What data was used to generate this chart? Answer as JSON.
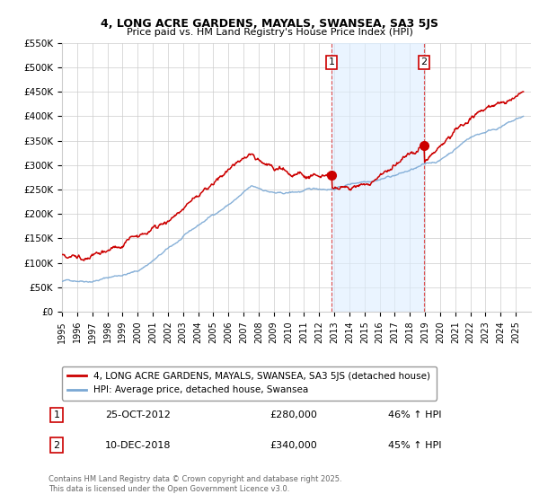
{
  "title": "4, LONG ACRE GARDENS, MAYALS, SWANSEA, SA3 5JS",
  "subtitle": "Price paid vs. HM Land Registry's House Price Index (HPI)",
  "ylabel_ticks": [
    "£0",
    "£50K",
    "£100K",
    "£150K",
    "£200K",
    "£250K",
    "£300K",
    "£350K",
    "£400K",
    "£450K",
    "£500K",
    "£550K"
  ],
  "ylim": [
    0,
    550000
  ],
  "ytick_vals": [
    0,
    50000,
    100000,
    150000,
    200000,
    250000,
    300000,
    350000,
    400000,
    450000,
    500000,
    550000
  ],
  "sale1": {
    "date_num": 2012.82,
    "price": 280000,
    "label": "1",
    "date_str": "25-OCT-2012",
    "price_str": "£280,000",
    "pct": "46% ↑ HPI"
  },
  "sale2": {
    "date_num": 2018.94,
    "price": 340000,
    "label": "2",
    "date_str": "10-DEC-2018",
    "price_str": "£340,000",
    "pct": "45% ↑ HPI"
  },
  "property_color": "#cc0000",
  "hpi_color": "#7aa8d4",
  "highlight_fill": "#ddeeff",
  "legend_label_property": "4, LONG ACRE GARDENS, MAYALS, SWANSEA, SA3 5JS (detached house)",
  "legend_label_hpi": "HPI: Average price, detached house, Swansea",
  "footnote": "Contains HM Land Registry data © Crown copyright and database right 2025.\nThis data is licensed under the Open Government Licence v3.0.",
  "xmin": 1995,
  "xmax": 2026
}
